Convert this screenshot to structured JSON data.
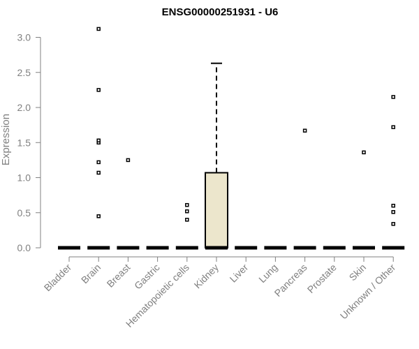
{
  "chart_data": {
    "type": "box",
    "title": "ENSG00000251931 - U6",
    "xlabel": "",
    "ylabel": "Expression",
    "ylim": [
      0,
      3.1
    ],
    "yticks": [
      "0.0",
      "0.5",
      "1.0",
      "1.5",
      "2.0",
      "2.5",
      "3.0"
    ],
    "grid": false,
    "colors": {
      "box_fill": "#ECE6CC",
      "axis": "#808080",
      "ink": "#000000"
    },
    "categories": [
      "Bladder",
      "Brain",
      "Breast",
      "Gastric",
      "Hematopoietic cells",
      "Kidney",
      "Liver",
      "Lung",
      "Pancreas",
      "Prostate",
      "Skin",
      "Unknown / Other"
    ],
    "series": [
      {
        "category": "Bladder",
        "q1": 0,
        "median": 0,
        "q3": 0,
        "whisker_low": 0,
        "whisker_high": 0,
        "outliers": []
      },
      {
        "category": "Brain",
        "q1": 0,
        "median": 0,
        "q3": 0,
        "whisker_low": 0,
        "whisker_high": 0,
        "outliers": [
          0.45,
          1.07,
          1.22,
          1.5,
          1.53,
          2.25,
          3.12
        ]
      },
      {
        "category": "Breast",
        "q1": 0,
        "median": 0,
        "q3": 0,
        "whisker_low": 0,
        "whisker_high": 0,
        "outliers": [
          1.25
        ]
      },
      {
        "category": "Gastric",
        "q1": 0,
        "median": 0,
        "q3": 0,
        "whisker_low": 0,
        "whisker_high": 0,
        "outliers": []
      },
      {
        "category": "Hematopoietic cells",
        "q1": 0,
        "median": 0,
        "q3": 0,
        "whisker_low": 0,
        "whisker_high": 0,
        "outliers": [
          0.4,
          0.52,
          0.61
        ]
      },
      {
        "category": "Kidney",
        "q1": 0,
        "median": 0,
        "q3": 1.07,
        "whisker_low": 0,
        "whisker_high": 2.63,
        "outliers": []
      },
      {
        "category": "Liver",
        "q1": 0,
        "median": 0,
        "q3": 0,
        "whisker_low": 0,
        "whisker_high": 0,
        "outliers": []
      },
      {
        "category": "Lung",
        "q1": 0,
        "median": 0,
        "q3": 0,
        "whisker_low": 0,
        "whisker_high": 0,
        "outliers": []
      },
      {
        "category": "Pancreas",
        "q1": 0,
        "median": 0,
        "q3": 0,
        "whisker_low": 0,
        "whisker_high": 0,
        "outliers": [
          1.67
        ]
      },
      {
        "category": "Prostate",
        "q1": 0,
        "median": 0,
        "q3": 0,
        "whisker_low": 0,
        "whisker_high": 0,
        "outliers": []
      },
      {
        "category": "Skin",
        "q1": 0,
        "median": 0,
        "q3": 0,
        "whisker_low": 0,
        "whisker_high": 0,
        "outliers": [
          1.36
        ]
      },
      {
        "category": "Unknown / Other",
        "q1": 0,
        "median": 0,
        "q3": 0,
        "whisker_low": 0,
        "whisker_high": 0,
        "outliers": [
          0.34,
          0.51,
          0.6,
          1.72,
          2.15
        ]
      }
    ]
  }
}
